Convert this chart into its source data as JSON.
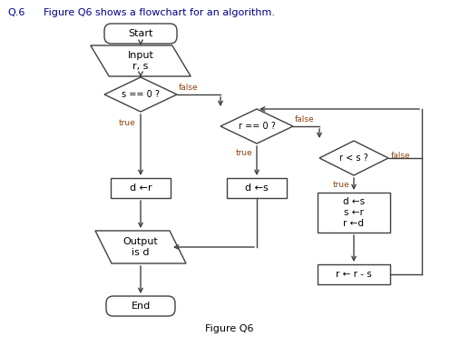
{
  "title_q": "Q.6",
  "title_text": "Figure Q6 shows a flowchart for an algorithm.",
  "figure_label": "Figure Q6",
  "bg_color": "#ffffff",
  "shape_color": "#404040",
  "shape_fill": "#ffffff",
  "text_color": "#000000",
  "label_color": "#8B4513",
  "title_color": "#00008B",
  "figsize": [
    5.07,
    3.82
  ],
  "dpi": 100
}
